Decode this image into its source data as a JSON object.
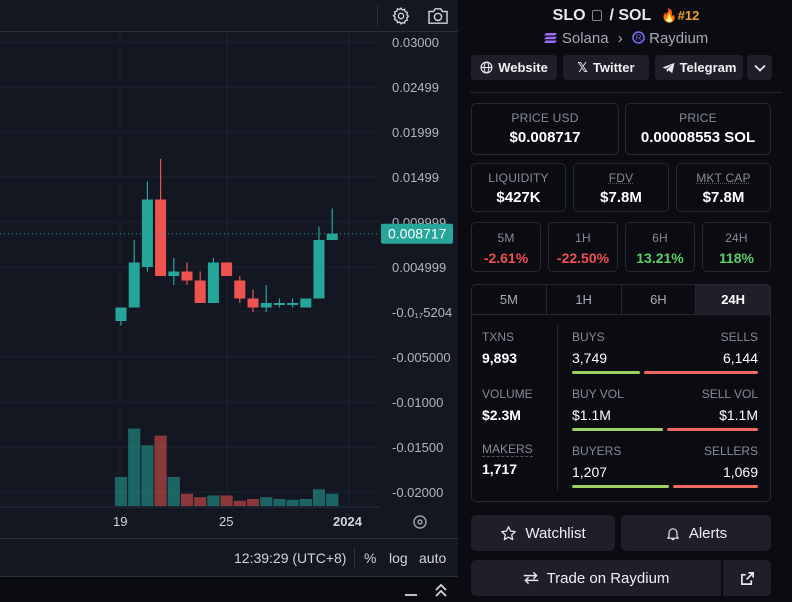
{
  "chart": {
    "price_axis": [
      "0.03000",
      "0.02499",
      "0.01999",
      "0.01499",
      "0.009999",
      "0.004999",
      "-0.0₁₇5204",
      "-0.005000",
      "-0.01000",
      "-0.01500",
      "-0.02000"
    ],
    "current_price_tag": "0.008717",
    "time_axis": [
      "19",
      "25",
      "2024"
    ],
    "footer": {
      "time": "12:39:29 (UTC+8)",
      "percent": "%",
      "log": "log",
      "auto": "auto"
    },
    "bottom_icons": [
      "minimize-icon",
      "collapse-up-icon"
    ],
    "colors": {
      "up": "#26a69a",
      "down": "#ef5350",
      "background": "#131722"
    }
  },
  "chart_data": {
    "type": "candlestick",
    "price_axis_range": [
      -0.02,
      0.03
    ],
    "candles": [
      {
        "open": -0.001,
        "high": 0.0005,
        "low": -0.0015,
        "close": 0.0005
      },
      {
        "open": 0.0005,
        "high": 0.008,
        "low": 0.0005,
        "close": 0.0055
      },
      {
        "open": 0.005,
        "high": 0.0145,
        "low": 0.0045,
        "close": 0.0125
      },
      {
        "open": 0.0125,
        "high": 0.017,
        "low": 0.004,
        "close": 0.004
      },
      {
        "open": 0.004,
        "high": 0.006,
        "low": 0.003,
        "close": 0.0045
      },
      {
        "open": 0.0045,
        "high": 0.0055,
        "low": 0.003,
        "close": 0.0035
      },
      {
        "open": 0.0035,
        "high": 0.0045,
        "low": 0.001,
        "close": 0.001
      },
      {
        "open": 0.001,
        "high": 0.006,
        "low": 0.001,
        "close": 0.0055
      },
      {
        "open": 0.0055,
        "high": 0.0055,
        "low": 0.004,
        "close": 0.004
      },
      {
        "open": 0.0035,
        "high": 0.004,
        "low": 0.001,
        "close": 0.0015
      },
      {
        "open": 0.0015,
        "high": 0.0025,
        "low": 0.0,
        "close": 0.0005
      },
      {
        "open": 0.0005,
        "high": 0.003,
        "low": 0.0,
        "close": 0.001
      },
      {
        "open": 0.001,
        "high": 0.0015,
        "low": 0.0005,
        "close": 0.001
      },
      {
        "open": 0.001,
        "high": 0.0015,
        "low": 0.0005,
        "close": 0.001
      },
      {
        "open": 0.0005,
        "high": 0.0015,
        "low": 0.0005,
        "close": 0.0015
      },
      {
        "open": 0.0015,
        "high": 0.0095,
        "low": 0.0015,
        "close": 0.008
      },
      {
        "open": 0.008,
        "high": 0.0115,
        "low": 0.008,
        "close": 0.0087
      }
    ],
    "volume_relative": [
      0.33,
      0.88,
      0.69,
      0.8,
      0.33,
      0.14,
      0.1,
      0.12,
      0.12,
      0.06,
      0.08,
      0.1,
      0.08,
      0.07,
      0.08,
      0.19,
      0.14
    ]
  },
  "pair": {
    "base": "SLO",
    "quote": "SOL",
    "rank": "#12",
    "chain": "Solana",
    "dex": "Raydium"
  },
  "links": {
    "website": "Website",
    "twitter": "Twitter",
    "telegram": "Telegram"
  },
  "stats": {
    "price_usd_label": "PRICE USD",
    "price_usd": "$0.008717",
    "price_label": "PRICE",
    "price_native": "0.00008553 SOL",
    "liquidity_label": "LIQUIDITY",
    "liquidity": "$427K",
    "fdv_label": "FDV",
    "fdv": "$7.8M",
    "mktcap_label": "MKT CAP",
    "mktcap": "$7.8M"
  },
  "changes": [
    {
      "label": "5M",
      "value": "-2.61%",
      "dir": "neg"
    },
    {
      "label": "1H",
      "value": "-22.50%",
      "dir": "neg"
    },
    {
      "label": "6H",
      "value": "13.21%",
      "dir": "pos"
    },
    {
      "label": "24H",
      "value": "118%",
      "dir": "pos"
    }
  ],
  "txn": {
    "tabs": [
      "5M",
      "1H",
      "6H",
      "24H"
    ],
    "active_tab": "24H",
    "txns_label": "TXNS",
    "txns": "9,893",
    "volume_label": "VOLUME",
    "volume": "$2.3M",
    "makers_label": "MAKERS",
    "makers": "1,717",
    "buys_label": "BUYS",
    "buys": "3,749",
    "sells_label": "SELLS",
    "sells": "6,144",
    "buy_vol_label": "BUY VOL",
    "buy_vol": "$1.1M",
    "sell_vol_label": "SELL VOL",
    "sell_vol": "$1.1M",
    "buyers_label": "BUYERS",
    "buyers": "1,207",
    "sellers_label": "SELLERS",
    "sellers": "1,069",
    "buys_fraction": 0.379,
    "buy_vol_fraction": 0.5,
    "buyers_fraction": 0.53
  },
  "actions": {
    "watchlist": "Watchlist",
    "alerts": "Alerts",
    "trade": "Trade on Raydium"
  }
}
